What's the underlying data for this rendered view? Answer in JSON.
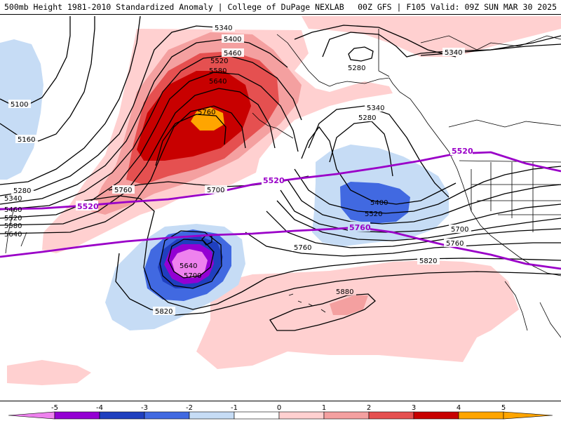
{
  "header": {
    "title_left": "500mb Height 1981-2010 Standardized Anomaly | College of DuPage NEXLAB",
    "title_right": "00Z GFS | F105 Valid: 09Z SUN MAR 30 2025"
  },
  "contour_labels": {
    "h5340_top": "5340",
    "h5400_top": "5400",
    "h5460_top": "5460",
    "h5520_top": "5520",
    "h5580_top": "5580",
    "h5640_top": "5640",
    "h5760_ridge": "5760",
    "h5100_west": "5100",
    "h5160_west": "5160",
    "h5280_west": "5280",
    "h5340_west": "5340",
    "h5460_west": "5460",
    "h5520_west": "5520",
    "h5580_west": "5580",
    "h5640_west": "5640",
    "h5760_mid": "5760",
    "h5700_mid": "5700",
    "h5280_bering": "5280",
    "h5340_ne": "5340",
    "h5340_gulf": "5340",
    "h5280_gulf": "5280",
    "h5400_gulf": "5400",
    "h5520_gulf": "5520",
    "h5700_east": "5700",
    "h5760_east": "5760",
    "h5760_low": "5760",
    "h5640_low": "5640",
    "h5700_low": "5700",
    "h5820_low": "5820",
    "h5820_mid": "5820",
    "h5880_hi": "5880"
  },
  "purple_labels": {
    "p5520_west": "5520",
    "p5520_mid": "5520",
    "p5520_east": "5520",
    "p5760_mid": "5760"
  },
  "colorbar": {
    "ticks": [
      "-5",
      "-4",
      "-3",
      "-2",
      "-1",
      "0",
      "1",
      "2",
      "3",
      "4",
      "5"
    ],
    "colors": {
      "neg5": "#ee82ee",
      "neg4": "#9400d3",
      "neg3": "#1f3fbf",
      "neg2": "#4169e1",
      "neg1": "#c6dcf5",
      "zero": "#ffffff",
      "pos1": "#ffd0d0",
      "pos2": "#f4a0a0",
      "pos3": "#e55050",
      "pos4": "#c80000",
      "pos5": "#ffa500"
    }
  },
  "anomaly_colors": {
    "light_red": "#ffd0d0",
    "pink": "#f4a0a0",
    "red": "#e55050",
    "dark_red": "#c80000",
    "orange": "#ffa500",
    "light_blue": "#c6dcf5",
    "blue": "#4169e1",
    "dark_blue": "#1f3fbf",
    "purple": "#9400d3",
    "violet": "#ee82ee",
    "climo_line": "#9a00c8"
  },
  "icons": {
    "left_arrow": "triangle-left",
    "right_arrow": "triangle-right"
  }
}
